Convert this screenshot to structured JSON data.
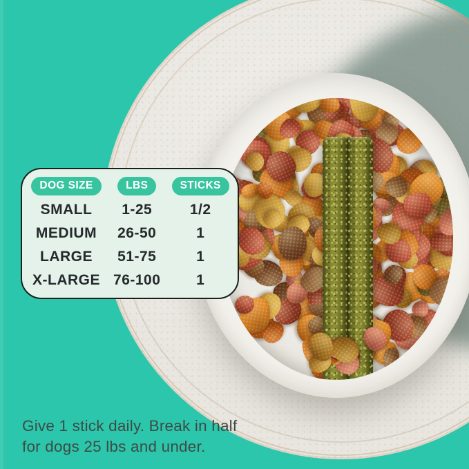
{
  "colors": {
    "background_teal": "#2bc6ab",
    "card_bg": "#e4f2e9",
    "card_border": "#1a211d",
    "pill_bg": "#38c49e",
    "pill_text": "#ffffff",
    "table_text": "#25292b",
    "caption_text": "#3e4b46",
    "plate": "#e9e6e0",
    "bowl": "#f3f1ec",
    "plate_shadow_sage": "#7a8f86",
    "stick_olive": "#6b6d24"
  },
  "dosing_table": {
    "headers": [
      "DOG SIZE",
      "LBS",
      "STICKS"
    ],
    "rows": [
      {
        "dog_size": "SMALL",
        "lbs": "1-25",
        "sticks": "1/2"
      },
      {
        "dog_size": "MEDIUM",
        "lbs": "26-50",
        "sticks": "1"
      },
      {
        "dog_size": "LARGE",
        "lbs": "51-75",
        "sticks": "1"
      },
      {
        "dog_size": "X-LARGE",
        "lbs": "76-100",
        "sticks": "1"
      }
    ]
  },
  "caption": {
    "line1": "Give 1 stick daily. Break in half",
    "line2": "for dogs 25 lbs and under."
  },
  "scene": {
    "kibble_palette": [
      "#d2731c",
      "#de8524",
      "#c35c17",
      "#b84a38",
      "#c65848",
      "#cd6f5b",
      "#9e3d2c",
      "#c89434",
      "#d6a73e",
      "#ad7b23",
      "#8a5c33",
      "#75482a",
      "#d2731c",
      "#c89434",
      "#b84a38",
      "#de8524",
      "#6d6527",
      "#a1744a"
    ]
  }
}
